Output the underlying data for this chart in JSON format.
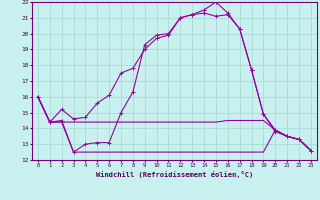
{
  "xlabel": "Windchill (Refroidissement éolien,°C)",
  "background_color": "#c8f0ee",
  "grid_color": "#a0d8d0",
  "line_color": "#990099",
  "xlim_min": -0.5,
  "xlim_max": 23.5,
  "ylim_min": 12,
  "ylim_max": 22,
  "yticks": [
    12,
    13,
    14,
    15,
    16,
    17,
    18,
    19,
    20,
    21,
    22
  ],
  "xticks": [
    0,
    1,
    2,
    3,
    4,
    5,
    6,
    7,
    8,
    9,
    10,
    11,
    12,
    13,
    14,
    15,
    16,
    17,
    18,
    19,
    20,
    21,
    22,
    23
  ],
  "curve1_x": [
    0,
    1,
    2,
    3,
    4,
    5,
    6,
    7,
    8,
    9,
    10,
    11,
    12,
    13,
    14,
    15,
    16,
    17,
    18,
    19,
    20,
    21,
    22,
    23
  ],
  "curve1_y": [
    16.0,
    14.4,
    14.5,
    12.5,
    13.0,
    13.1,
    13.1,
    15.0,
    16.3,
    19.3,
    19.9,
    20.0,
    21.0,
    21.2,
    21.5,
    22.0,
    21.3,
    20.3,
    17.7,
    14.9,
    13.8,
    13.5,
    13.3,
    12.6
  ],
  "curve2_x": [
    0,
    1,
    2,
    3,
    4,
    5,
    6,
    7,
    8,
    9,
    10,
    11,
    12,
    13,
    14,
    15,
    16,
    17,
    18,
    19,
    20,
    21,
    22,
    23
  ],
  "curve2_y": [
    16.0,
    14.4,
    15.2,
    14.6,
    14.7,
    15.6,
    16.1,
    17.5,
    17.8,
    19.0,
    19.7,
    19.9,
    21.0,
    21.2,
    21.3,
    21.1,
    21.2,
    20.3,
    17.7,
    14.9,
    13.9,
    13.5,
    13.3,
    12.6
  ],
  "line_flat1_x": [
    0,
    1,
    2,
    3,
    4,
    5,
    6,
    7,
    8,
    9,
    10,
    11,
    12,
    13,
    14,
    15,
    16,
    17,
    18,
    19,
    20,
    21,
    22,
    23
  ],
  "line_flat1_y": [
    16.0,
    14.4,
    14.4,
    14.4,
    14.4,
    14.4,
    14.4,
    14.4,
    14.4,
    14.4,
    14.4,
    14.4,
    14.4,
    14.4,
    14.4,
    14.4,
    14.5,
    14.5,
    14.5,
    14.5,
    13.9,
    13.5,
    13.3,
    12.6
  ],
  "line_flat2_x": [
    0,
    1,
    2,
    3,
    4,
    5,
    6,
    7,
    8,
    9,
    10,
    11,
    12,
    13,
    14,
    15,
    16,
    17,
    18,
    19,
    20,
    21,
    22,
    23
  ],
  "line_flat2_y": [
    16.0,
    14.4,
    14.4,
    12.5,
    12.5,
    12.5,
    12.5,
    12.5,
    12.5,
    12.5,
    12.5,
    12.5,
    12.5,
    12.5,
    12.5,
    12.5,
    12.5,
    12.5,
    12.5,
    12.5,
    13.9,
    13.5,
    13.3,
    12.6
  ]
}
